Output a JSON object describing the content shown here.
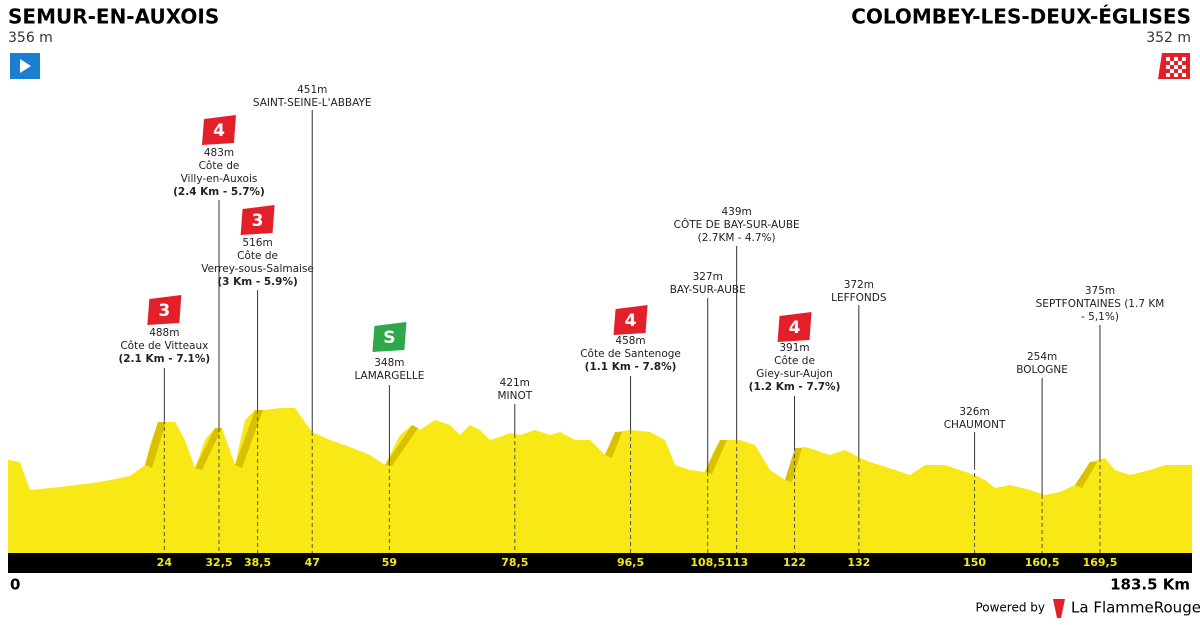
{
  "start": {
    "name": "SEMUR-EN-AUXOIS",
    "altitude": "356 m"
  },
  "finish": {
    "name": "COLOMBEY-LES-DEUX-ÉGLISES",
    "altitude": "352 m"
  },
  "distance_axis": {
    "start": {
      "value": 0,
      "label": "0"
    },
    "end": {
      "value": 183.5,
      "label": "183.5 Km"
    }
  },
  "points": [
    {
      "km": 24,
      "category": "3",
      "altitude": "488m",
      "name": [
        "Côte de Vitteaux"
      ],
      "detail": "(2.1 Km - 7.1%)"
    },
    {
      "km": {
        "value": 32.5,
        "label": "32,5"
      },
      "category": "4",
      "altitude": "483m",
      "name": [
        "Côte de",
        "Villy-en-Auxois"
      ],
      "detail": "(2.4 Km - 5.7%)"
    },
    {
      "km": {
        "value": 38.5,
        "label": "38,5"
      },
      "category": "3",
      "altitude": "516m",
      "name": [
        "Côte de",
        "Verrey-sous-Salmaise"
      ],
      "detail": "(3 Km - 5.9%)"
    },
    {
      "km": 47,
      "altitude": "451m",
      "name": [
        "SAINT-SEINE-L'ABBAYE"
      ]
    },
    {
      "km": 59,
      "category": "S",
      "altitude": "348m",
      "name": [
        "LAMARGELLE"
      ]
    },
    {
      "km": {
        "value": 78.5,
        "label": "78,5"
      },
      "altitude": "421m",
      "name": [
        "MINOT"
      ]
    },
    {
      "km": {
        "value": 96.5,
        "label": "96,5"
      },
      "category": "4",
      "altitude": "458m",
      "name": [
        "Côte de Santenoge"
      ],
      "detail": "(1.1 Km - 7.8%)"
    },
    {
      "km": {
        "value": 108.5,
        "label": "108,5"
      },
      "altitude": "327m",
      "name": [
        "BAY-SUR-AUBE"
      ]
    },
    {
      "km": 113,
      "altitude": "439m",
      "name": [
        "CÔTE DE BAY-SUR-AUBE"
      ],
      "detail": "(2.7KM - 4.7%)"
    },
    {
      "km": 122,
      "category": "4",
      "altitude": "391m",
      "name": [
        "Côte de",
        "Giey-sur-Aujon"
      ],
      "detail": "(1.2 Km - 7.7%)"
    },
    {
      "km": 132,
      "altitude": "372m",
      "name": [
        "LEFFONDS"
      ]
    },
    {
      "km": 150,
      "altitude": "326m",
      "name": [
        "CHAUMONT"
      ]
    },
    {
      "km": {
        "value": 160.5,
        "label": "160,5"
      },
      "altitude": "254m",
      "name": [
        "BOLOGNE"
      ]
    },
    {
      "km": {
        "value": 169.5,
        "label": "169,5"
      },
      "altitude": "375m",
      "name": [
        "SEPTFONTAINES (1.7 KM",
        "- 5,1%)"
      ]
    }
  ],
  "footer": {
    "powered_by": "Powered by",
    "brand": "La FlammeRouge"
  }
}
